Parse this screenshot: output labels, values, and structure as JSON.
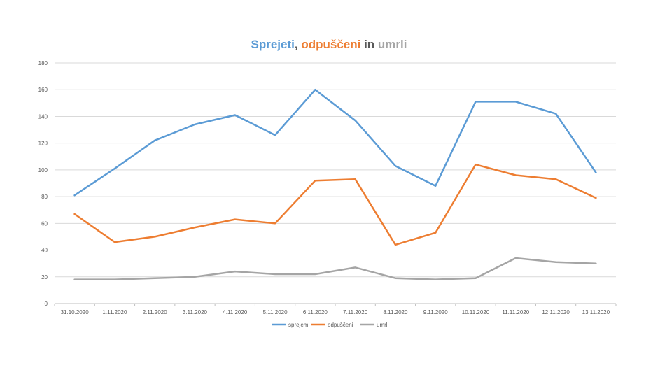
{
  "chart_data": {
    "type": "line",
    "title_parts": [
      {
        "text": "Sprejeti",
        "color": "#5B9BD5"
      },
      {
        "text": ", ",
        "color": "#595959"
      },
      {
        "text": "odpuščeni",
        "color": "#ED7D31"
      },
      {
        "text": " in ",
        "color": "#595959"
      },
      {
        "text": "umrli",
        "color": "#A5A5A5"
      }
    ],
    "categories": [
      "31.10.2020",
      "1.11.2020",
      "2.11.2020",
      "3.11.2020",
      "4.11.2020",
      "5.11.2020",
      "6.11.2020",
      "7.11.2020",
      "8.11.2020",
      "9.11.2020",
      "10.11.2020",
      "11.11.2020",
      "12.11.2020",
      "13.11.2020"
    ],
    "series": [
      {
        "name": "sprejemi",
        "color": "#5B9BD5",
        "values": [
          81,
          101,
          122,
          134,
          141,
          126,
          160,
          137,
          103,
          88,
          151,
          151,
          142,
          98
        ]
      },
      {
        "name": "odpuščeni",
        "color": "#ED7D31",
        "values": [
          67,
          46,
          50,
          57,
          63,
          60,
          92,
          93,
          44,
          53,
          104,
          96,
          93,
          79
        ]
      },
      {
        "name": "umrli",
        "color": "#A5A5A5",
        "values": [
          18,
          18,
          19,
          20,
          24,
          22,
          22,
          27,
          19,
          18,
          19,
          34,
          31,
          30
        ]
      }
    ],
    "ylim": [
      0,
      180
    ],
    "yticks": [
      "0",
      "20",
      "40",
      "60",
      "80",
      "100",
      "120",
      "140",
      "160",
      "180"
    ],
    "grid": true,
    "legend_position": "bottom"
  }
}
